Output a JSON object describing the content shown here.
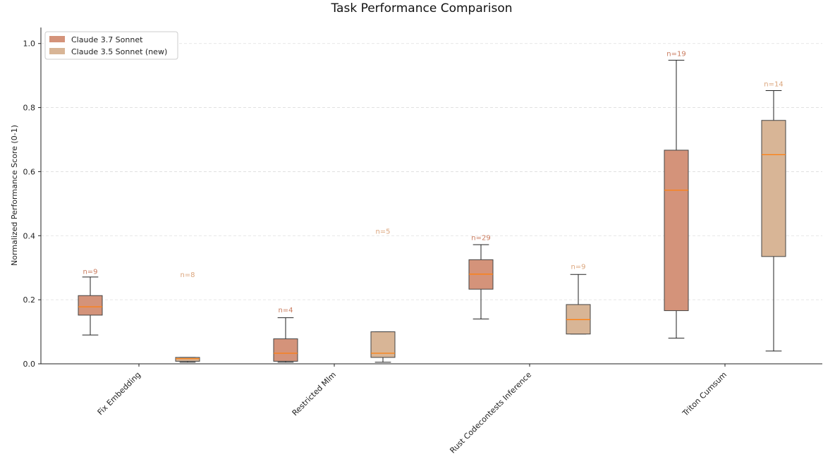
{
  "chart_data": {
    "type": "boxplot",
    "title": "Task Performance Comparison",
    "xlabel": "",
    "ylabel": "Normalized Performance Score (0-1)",
    "ylim": [
      0,
      1.05
    ],
    "yticks": [
      "0.0",
      "0.2",
      "0.4",
      "0.6",
      "0.8",
      "1.0"
    ],
    "grid": "y-dashed",
    "legend_position": "top-left",
    "categories": [
      "Fix Embedding",
      "Restricted Mlm",
      "Rust Codecontests Inference",
      "Triton Cumsum"
    ],
    "series": [
      {
        "name": "Claude 3.7 Sonnet",
        "color": "#d4937a",
        "label_color": "#c97b5e",
        "boxes": [
          {
            "whislo": 0.09,
            "q1": 0.152,
            "med": 0.178,
            "q3": 0.213,
            "whishi": 0.271,
            "n_label": "n=9",
            "n_y": 0.29
          },
          {
            "whislo": 0.005,
            "q1": 0.008,
            "med": 0.033,
            "q3": 0.078,
            "whishi": 0.144,
            "n_label": "n=4",
            "n_y": 0.17
          },
          {
            "whislo": 0.14,
            "q1": 0.233,
            "med": 0.28,
            "q3": 0.325,
            "whishi": 0.372,
            "n_label": "n=29",
            "n_y": 0.395
          },
          {
            "whislo": 0.08,
            "q1": 0.166,
            "med": 0.542,
            "q3": 0.667,
            "whishi": 0.948,
            "n_label": "n=19",
            "n_y": 0.97
          }
        ]
      },
      {
        "name": "Claude 3.5 Sonnet (new)",
        "color": "#d8b596",
        "label_color": "#dba57c",
        "boxes": [
          {
            "whislo": 0.005,
            "q1": 0.008,
            "med": 0.016,
            "q3": 0.02,
            "whishi": 0.02,
            "n_label": "n=8",
            "n_y": 0.28
          },
          {
            "whislo": 0.005,
            "q1": 0.02,
            "med": 0.033,
            "q3": 0.1,
            "whishi": 0.1,
            "n_label": "n=5",
            "n_y": 0.415
          },
          {
            "whislo": 0.093,
            "q1": 0.093,
            "med": 0.138,
            "q3": 0.185,
            "whishi": 0.279,
            "n_label": "n=9",
            "n_y": 0.305
          },
          {
            "whislo": 0.04,
            "q1": 0.335,
            "med": 0.653,
            "q3": 0.76,
            "whishi": 0.853,
            "n_label": "n=14",
            "n_y": 0.875
          }
        ]
      }
    ],
    "median_color": "#ff7f0e"
  }
}
